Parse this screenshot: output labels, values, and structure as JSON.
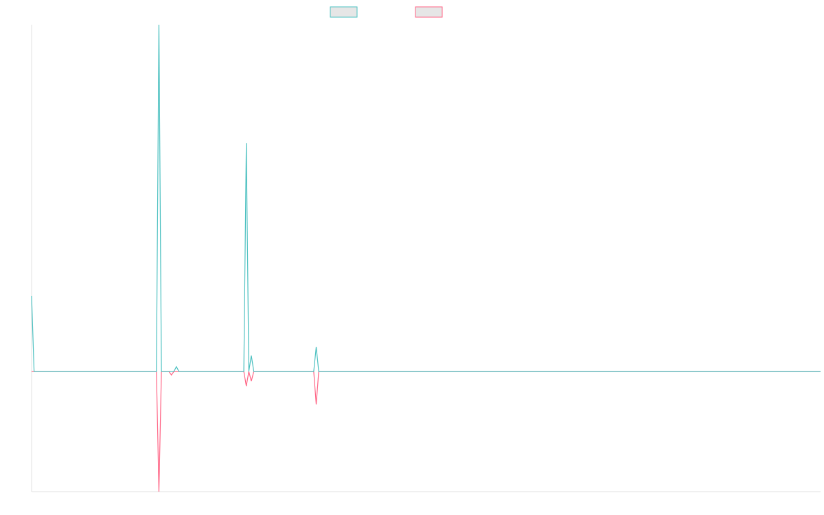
{
  "chart_data": {
    "type": "line",
    "xlim": [
      0,
      316
    ],
    "ylim": [
      -34.65,
      100
    ],
    "series": [
      {
        "color": "#ff6384",
        "x": [
          0,
          50,
          51,
          52,
          55,
          56,
          57,
          85,
          86,
          87,
          88,
          89,
          113,
          114,
          115,
          316
        ],
        "values": [
          0,
          0,
          -34.65,
          0,
          0,
          -1,
          0,
          0,
          -4.2,
          0,
          -2.8,
          0,
          0,
          -9.5,
          0,
          0
        ]
      },
      {
        "color": "#4bc0c0",
        "x": [
          0,
          1,
          50,
          51,
          52,
          57,
          58,
          59,
          85,
          86,
          87,
          88,
          89,
          113,
          114,
          115,
          316
        ],
        "values": [
          21.8,
          0,
          0,
          100,
          0,
          0,
          1.4,
          0,
          0,
          65.9,
          0,
          4.6,
          0,
          0,
          7.1,
          0,
          0
        ]
      }
    ]
  }
}
